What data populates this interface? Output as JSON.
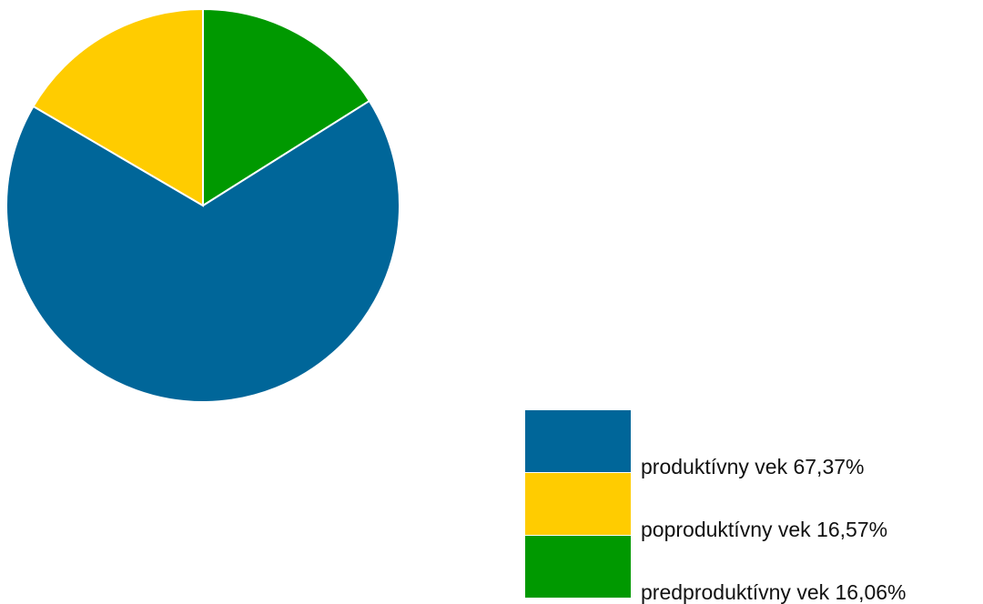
{
  "chart_data": {
    "type": "pie",
    "start_angle_deg": 0,
    "direction": "clockwise",
    "slices": [
      {
        "label": "predproduktívny vek 16,06%",
        "value": 16.06,
        "color": "#009900"
      },
      {
        "label": "produktívny vek 67,37%",
        "value": 67.37,
        "color": "#006699"
      },
      {
        "label": "poproduktívny vek 16,57%",
        "value": 16.57,
        "color": "#ffcc00"
      }
    ],
    "legend": {
      "position": "bottom-right",
      "order": [
        1,
        2,
        0
      ]
    }
  }
}
